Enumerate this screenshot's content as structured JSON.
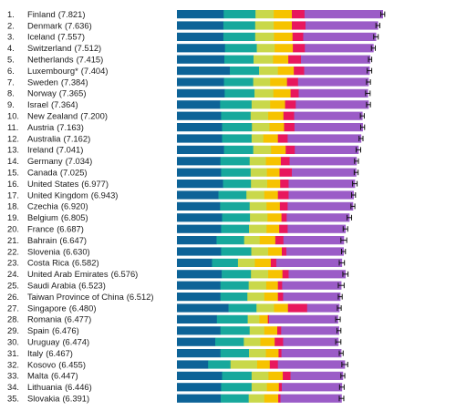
{
  "chart_data": {
    "type": "bar",
    "stacked": true,
    "orientation": "horizontal",
    "title": "",
    "xlabel": "",
    "ylabel": "",
    "grid": false,
    "legend": "none",
    "component_colors": [
      "#0d6397",
      "#17a89c",
      "#c9d84a",
      "#f6c300",
      "#e8175d",
      "#9b5cc7"
    ],
    "rows": [
      {
        "rank": "1.",
        "country": "Finland",
        "score": "(7.821)",
        "segments": [
          1.44,
          0.98,
          0.56,
          0.56,
          0.39,
          2.41
        ],
        "ci": 0.06
      },
      {
        "rank": "2.",
        "country": "Denmark",
        "score": "(7.636)",
        "segments": [
          1.43,
          0.98,
          0.57,
          0.56,
          0.42,
          2.23
        ],
        "ci": 0.06
      },
      {
        "rank": "3.",
        "country": "Iceland",
        "score": "(7.557)",
        "segments": [
          1.43,
          0.98,
          0.58,
          0.57,
          0.33,
          2.24
        ],
        "ci": 0.07
      },
      {
        "rank": "4.",
        "country": "Switzerland",
        "score": "(7.512)",
        "segments": [
          1.48,
          0.98,
          0.55,
          0.56,
          0.37,
          2.11
        ],
        "ci": 0.06
      },
      {
        "rank": "5.",
        "country": "Netherlands",
        "score": "(7.415)",
        "segments": [
          1.46,
          0.9,
          0.6,
          0.47,
          0.39,
          2.13
        ],
        "ci": 0.05
      },
      {
        "rank": "6.",
        "country": "Luxembourg*",
        "score": "(7.404)",
        "segments": [
          1.63,
          0.9,
          0.58,
          0.49,
          0.32,
          2.01
        ],
        "ci": 0.07
      },
      {
        "rank": "7.",
        "country": "Sweden",
        "score": "(7.384)",
        "segments": [
          1.45,
          0.9,
          0.52,
          0.52,
          0.34,
          2.17
        ],
        "ci": 0.06
      },
      {
        "rank": "8.",
        "country": "Norway",
        "score": "(7.365)",
        "segments": [
          1.47,
          0.92,
          0.58,
          0.53,
          0.25,
          2.13
        ],
        "ci": 0.07
      },
      {
        "rank": "9.",
        "country": "Israel",
        "score": "(7.364)",
        "segments": [
          1.33,
          0.97,
          0.57,
          0.46,
          0.33,
          2.24
        ],
        "ci": 0.06
      },
      {
        "rank": "10.",
        "country": "New Zealand",
        "score": "(7.200)",
        "segments": [
          1.36,
          0.91,
          0.54,
          0.47,
          0.33,
          2.1
        ],
        "ci": 0.06
      },
      {
        "rank": "11.",
        "country": "Austria",
        "score": "(7.163)",
        "segments": [
          1.39,
          0.92,
          0.54,
          0.45,
          0.32,
          2.1
        ],
        "ci": 0.06
      },
      {
        "rank": "12.",
        "country": "Australia",
        "score": "(7.162)",
        "segments": [
          1.39,
          0.91,
          0.36,
          0.45,
          0.3,
          2.26
        ],
        "ci": 0.06
      },
      {
        "rank": "13.",
        "country": "Ireland",
        "score": "(7.041)",
        "segments": [
          1.45,
          0.9,
          0.55,
          0.45,
          0.28,
          1.96
        ],
        "ci": 0.07
      },
      {
        "rank": "14.",
        "country": "Germany",
        "score": "(7.034)",
        "segments": [
          1.34,
          0.9,
          0.5,
          0.46,
          0.27,
          2.06
        ],
        "ci": 0.06
      },
      {
        "rank": "15.",
        "country": "Canada",
        "score": "(7.025)",
        "segments": [
          1.36,
          0.91,
          0.5,
          0.39,
          0.38,
          1.98
        ],
        "ci": 0.06
      },
      {
        "rank": "16.",
        "country": "United States",
        "score": "(6.977)",
        "segments": [
          1.42,
          0.86,
          0.5,
          0.4,
          0.26,
          2.04
        ],
        "ci": 0.07
      },
      {
        "rank": "17.",
        "country": "United Kingdom",
        "score": "(6.943)",
        "segments": [
          1.28,
          0.86,
          0.55,
          0.42,
          0.33,
          2.0
        ],
        "ci": 0.06
      },
      {
        "rank": "18.",
        "country": "Czechia",
        "score": "(6.920)",
        "segments": [
          1.33,
          0.91,
          0.52,
          0.41,
          0.24,
          2.01
        ],
        "ci": 0.06
      },
      {
        "rank": "19.",
        "country": "Belgium",
        "score": "(6.805)",
        "segments": [
          1.39,
          0.86,
          0.54,
          0.43,
          0.16,
          1.93
        ],
        "ci": 0.07
      },
      {
        "rank": "20.",
        "country": "France",
        "score": "(6.687)",
        "segments": [
          1.36,
          0.86,
          0.54,
          0.39,
          0.26,
          1.78
        ],
        "ci": 0.07
      },
      {
        "rank": "21.",
        "country": "Bahrain",
        "score": "(6.647)",
        "segments": [
          1.22,
          0.85,
          0.48,
          0.48,
          0.25,
          1.86
        ],
        "ci": 0.09
      },
      {
        "rank": "22.",
        "country": "Slovenia",
        "score": "(6.630)",
        "segments": [
          1.36,
          0.93,
          0.52,
          0.42,
          0.14,
          1.76
        ],
        "ci": 0.06
      },
      {
        "rank": "23.",
        "country": "Costa Rica",
        "score": "(6.582)",
        "segments": [
          1.08,
          0.8,
          0.52,
          0.49,
          0.17,
          2.02
        ],
        "ci": 0.08
      },
      {
        "rank": "24.",
        "country": "United Arab Emirates",
        "score": "(6.576)",
        "segments": [
          1.38,
          0.9,
          0.53,
          0.44,
          0.19,
          1.75
        ],
        "ci": 0.08
      },
      {
        "rank": "25.",
        "country": "Saudi Arabia",
        "score": "(6.523)",
        "segments": [
          1.34,
          0.87,
          0.54,
          0.36,
          0.13,
          1.82
        ],
        "ci": 0.09
      },
      {
        "rank": "26.",
        "country": "Taiwan Province of China",
        "score": "(6.512)",
        "segments": [
          1.34,
          0.83,
          0.52,
          0.42,
          0.16,
          1.76
        ],
        "ci": 0.06
      },
      {
        "rank": "27.",
        "country": "Singapore",
        "score": "(6.480)",
        "segments": [
          1.59,
          0.86,
          0.54,
          0.43,
          0.59,
          0.99
        ],
        "ci": 0.06
      },
      {
        "rank": "28.",
        "country": "Romania",
        "score": "(6.477)",
        "segments": [
          1.23,
          0.95,
          0.36,
          0.26,
          0.04,
          2.12
        ],
        "ci": 0.07
      },
      {
        "rank": "29.",
        "country": "Spain",
        "score": "(6.476)",
        "segments": [
          1.34,
          0.9,
          0.45,
          0.4,
          0.12,
          1.78
        ],
        "ci": 0.06
      },
      {
        "rank": "30.",
        "country": "Uruguay",
        "score": "(6.474)",
        "segments": [
          1.18,
          0.88,
          0.51,
          0.44,
          0.26,
          1.7
        ],
        "ci": 0.08
      },
      {
        "rank": "31.",
        "country": "Italy",
        "score": "(6.467)",
        "segments": [
          1.34,
          0.88,
          0.52,
          0.39,
          0.09,
          1.84
        ],
        "ci": 0.06
      },
      {
        "rank": "32.",
        "country": "Kosovo",
        "score": "(6.455)",
        "segments": [
          0.96,
          0.69,
          0.82,
          0.39,
          0.25,
          2.06
        ],
        "ci": 0.09
      },
      {
        "rank": "33.",
        "country": "Malta",
        "score": "(6.447)",
        "segments": [
          1.39,
          0.91,
          0.52,
          0.44,
          0.24,
          1.61
        ],
        "ci": 0.06
      },
      {
        "rank": "34.",
        "country": "Lithuania",
        "score": "(6.446)",
        "segments": [
          1.36,
          0.94,
          0.47,
          0.37,
          0.09,
          1.85
        ],
        "ci": 0.07
      },
      {
        "rank": "35.",
        "country": "Slovakia",
        "score": "(6.391)",
        "segments": [
          1.35,
          0.86,
          0.48,
          0.43,
          0.07,
          1.88
        ],
        "ci": 0.07
      }
    ]
  }
}
